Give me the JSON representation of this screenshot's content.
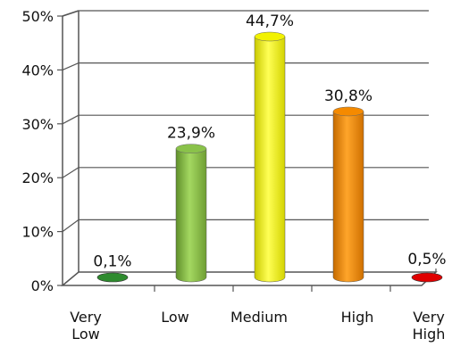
{
  "chart_data": {
    "type": "bar",
    "title": "",
    "xlabel": "",
    "ylabel": "",
    "categories": [
      [
        "Very",
        "Low"
      ],
      [
        "Low"
      ],
      [
        "Medium"
      ],
      [
        "High"
      ],
      [
        "Very",
        "High"
      ]
    ],
    "values": [
      0.1,
      23.9,
      44.7,
      30.8,
      0.5
    ],
    "data_labels": [
      "0,1%",
      "23,9%",
      "44,7%",
      "30,8%",
      "0,5%"
    ],
    "y_ticks": [
      "0%",
      "10%",
      "20%",
      "30%",
      "40%",
      "50%"
    ],
    "ylim": [
      0,
      50
    ],
    "grid": true,
    "legend": "none",
    "colors": {
      "very_low": "#2e8b2e",
      "low": "#8ac24a",
      "medium": "#f2f200",
      "high": "#f58a00",
      "very_high": "#e00000"
    }
  }
}
